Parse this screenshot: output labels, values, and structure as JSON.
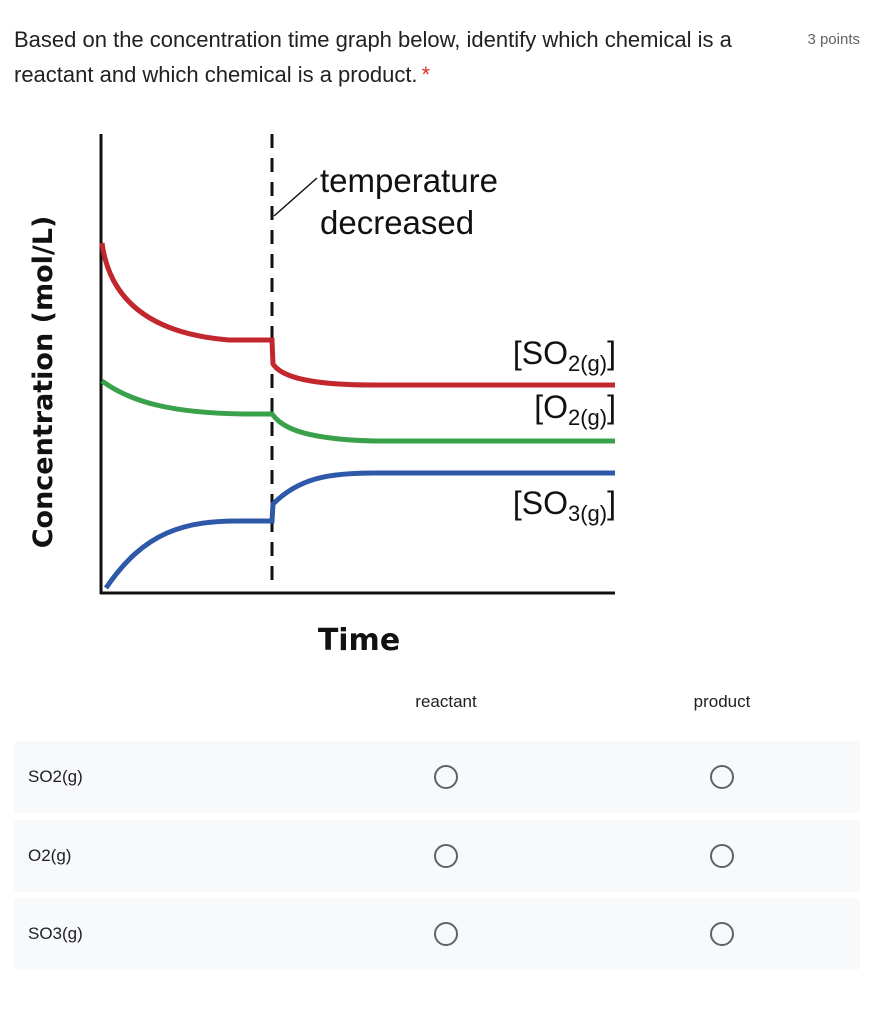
{
  "question": {
    "text": "Based on the concentration time graph below, identify which chemical is a reactant and which chemical is a product.",
    "required_marker": "*",
    "points": "3 points"
  },
  "chart_data": {
    "type": "line",
    "ylabel": "Concentration (mol/L)",
    "xlabel": "Time",
    "annotation": "temperature decreased",
    "colors": {
      "so2": "#c1272d",
      "o2": "#3aa14b",
      "so3": "#2e58a8",
      "axis": "#111111"
    },
    "series": [
      {
        "name": "[SO2(g)]",
        "label_main": "[SO",
        "label_sub": "2(g)",
        "label_end": "]"
      },
      {
        "name": "[O2(g)]",
        "label_main": "[O",
        "label_sub": "2(g)",
        "label_end": "]"
      },
      {
        "name": "[SO3(g)]",
        "label_main": "[SO",
        "label_sub": "3(g)",
        "label_end": "]"
      }
    ]
  },
  "grid": {
    "columns": [
      "reactant",
      "product"
    ],
    "rows": [
      "SO2(g)",
      "O2(g)",
      "SO3(g)"
    ]
  }
}
